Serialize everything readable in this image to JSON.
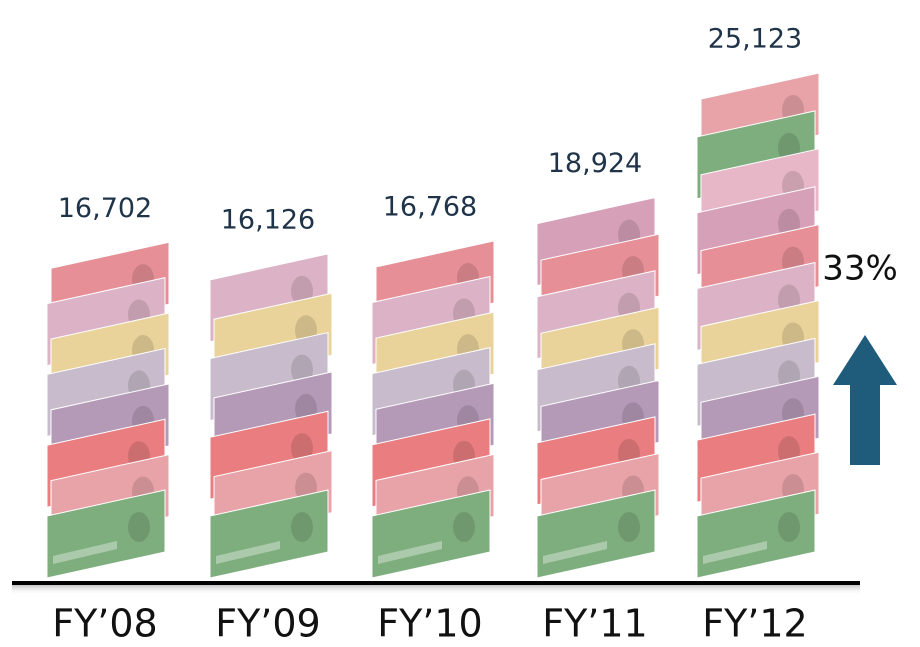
{
  "chart_data": {
    "type": "bar",
    "categories": [
      "FY’08",
      "FY’09",
      "FY’10",
      "FY’11",
      "FY’12"
    ],
    "values": [
      16702,
      16126,
      16768,
      18924,
      25123
    ],
    "value_labels": [
      "16,702",
      "16,126",
      "16,768",
      "18,924",
      "25,123"
    ],
    "annotation": "33%",
    "color": "#1f5b7a"
  }
}
